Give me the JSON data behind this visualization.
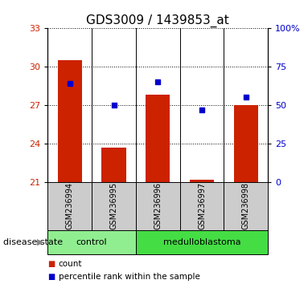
{
  "title": "GDS3009 / 1439853_at",
  "samples": [
    "GSM236994",
    "GSM236995",
    "GSM236996",
    "GSM236997",
    "GSM236998"
  ],
  "counts": [
    30.5,
    23.7,
    27.8,
    21.15,
    27.0
  ],
  "percentiles": [
    64,
    50,
    65,
    47,
    55
  ],
  "ylim_left": [
    21,
    33
  ],
  "ylim_right": [
    0,
    100
  ],
  "yticks_left": [
    21,
    24,
    27,
    30,
    33
  ],
  "yticks_right": [
    0,
    25,
    50,
    75,
    100
  ],
  "groups": [
    {
      "label": "control",
      "indices": [
        0,
        1
      ],
      "color": "#90EE90"
    },
    {
      "label": "medulloblastoma",
      "indices": [
        2,
        3,
        4
      ],
      "color": "#44DD44"
    }
  ],
  "bar_color": "#CC2200",
  "dot_color": "#0000CC",
  "bar_width": 0.55,
  "title_fontsize": 11,
  "tick_fontsize": 8,
  "label_fontsize": 8,
  "bg_xlabel": "#CCCCCC",
  "legend_marker_size": 5,
  "disease_state_label": "disease state",
  "ylabel_left_color": "#CC2200",
  "ylabel_right_color": "#0000CC"
}
